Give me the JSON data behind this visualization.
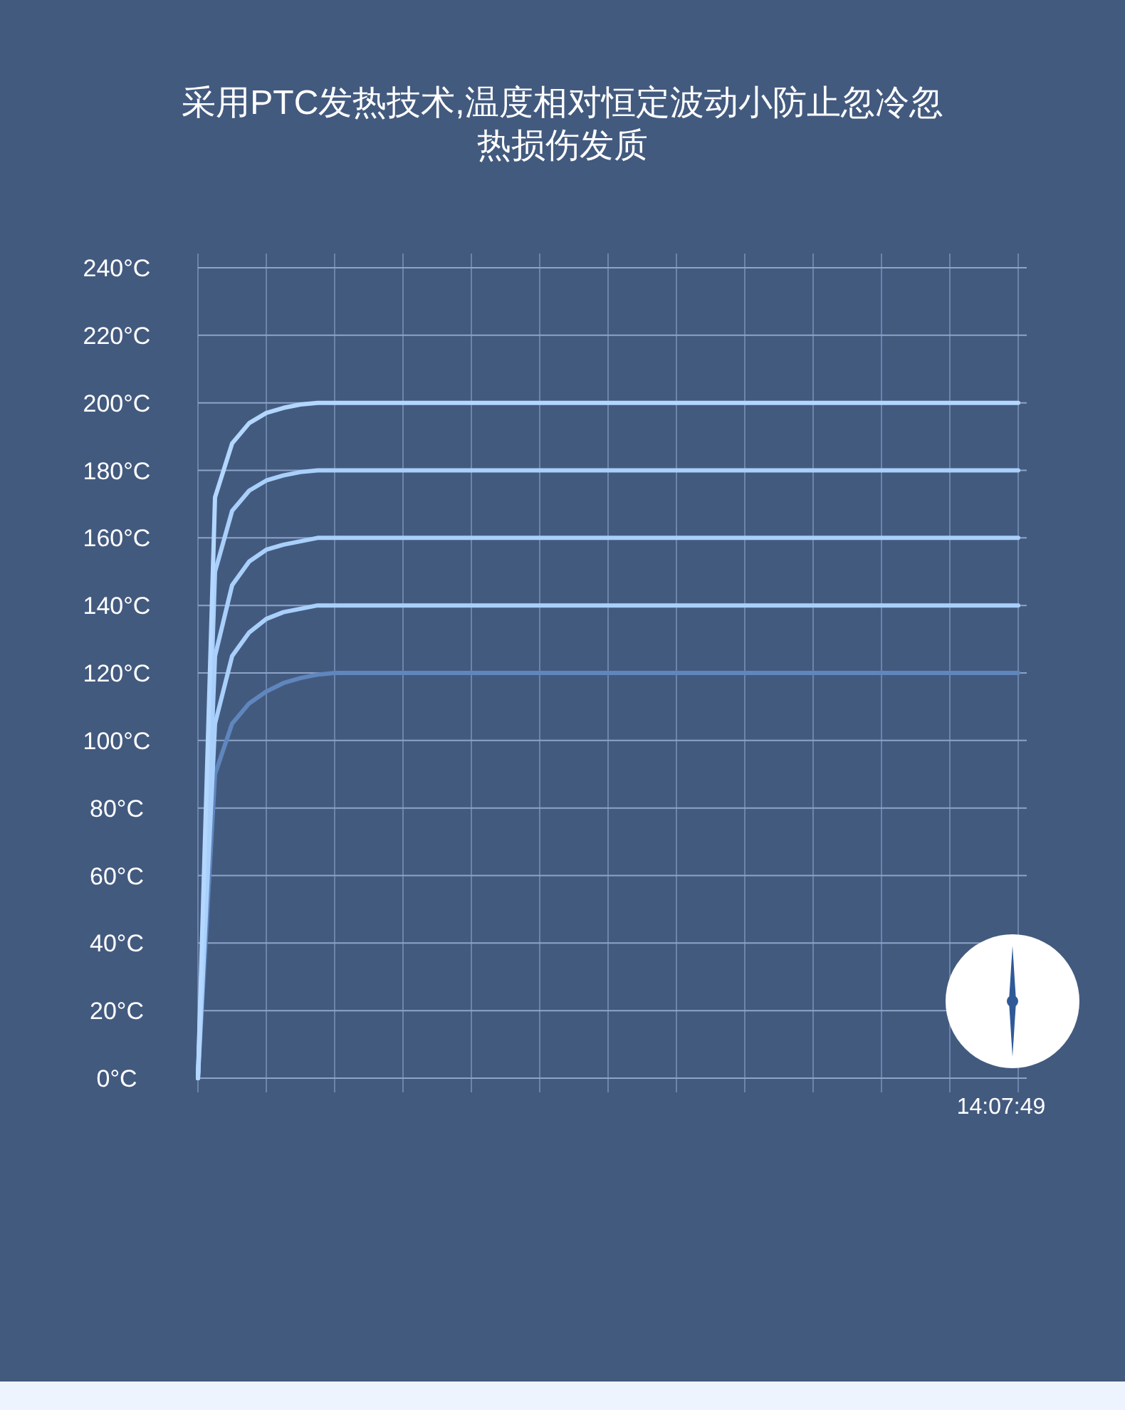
{
  "chart_data": {
    "type": "line",
    "title": "采用PTC发热技术,温度相对恒定波动小防止忽冷忽热损伤发质",
    "categories": [
      null,
      null,
      null,
      null,
      null,
      null,
      null,
      null,
      null,
      null,
      null,
      null,
      null,
      null,
      null,
      null,
      null,
      null,
      null,
      null,
      null,
      null,
      null,
      null,
      null,
      null,
      null,
      null,
      null,
      null,
      null,
      null,
      null,
      null,
      null,
      null,
      null,
      null,
      null,
      null,
      null,
      null,
      null,
      null,
      null,
      null,
      null,
      null,
      null
    ],
    "series": [
      {
        "color": "#5f86bd",
        "values": [
          0,
          90,
          105,
          111,
          114.5,
          117,
          118.5,
          119.5,
          120,
          120,
          120,
          120,
          120,
          120,
          120,
          120,
          120,
          120,
          120,
          120,
          120,
          120,
          120,
          120,
          120,
          120,
          120,
          120,
          120,
          120,
          120,
          120,
          120,
          120,
          120,
          120,
          120,
          120,
          120,
          120,
          120,
          120,
          120,
          120,
          120,
          120,
          120,
          120,
          120
        ]
      },
      {
        "color": "#a9d0fb",
        "values": [
          0,
          105,
          125,
          132,
          136,
          138,
          139,
          140,
          140,
          140,
          140,
          140,
          140,
          140,
          140,
          140,
          140,
          140,
          140,
          140,
          140,
          140,
          140,
          140,
          140,
          140,
          140,
          140,
          140,
          140,
          140,
          140,
          140,
          140,
          140,
          140,
          140,
          140,
          140,
          140,
          140,
          140,
          140,
          140,
          140,
          140,
          140,
          140,
          140
        ]
      },
      {
        "color": "#a9d0fb",
        "values": [
          0,
          125,
          146,
          153,
          156.5,
          158,
          159,
          160,
          160,
          160,
          160,
          160,
          160,
          160,
          160,
          160,
          160,
          160,
          160,
          160,
          160,
          160,
          160,
          160,
          160,
          160,
          160,
          160,
          160,
          160,
          160,
          160,
          160,
          160,
          160,
          160,
          160,
          160,
          160,
          160,
          160,
          160,
          160,
          160,
          160,
          160,
          160,
          160,
          160
        ]
      },
      {
        "color": "#a9d0fb",
        "values": [
          0,
          150,
          168,
          174,
          177,
          178.5,
          179.5,
          180,
          180,
          180,
          180,
          180,
          180,
          180,
          180,
          180,
          180,
          180,
          180,
          180,
          180,
          180,
          180,
          180,
          180,
          180,
          180,
          180,
          180,
          180,
          180,
          180,
          180,
          180,
          180,
          180,
          180,
          180,
          180,
          180,
          180,
          180,
          180,
          180,
          180,
          180,
          180,
          180,
          180
        ]
      },
      {
        "color": "#b3d7ff",
        "values": [
          0,
          172,
          188,
          194,
          197,
          198.5,
          199.5,
          200,
          200,
          200,
          200,
          200,
          200,
          200,
          200,
          200,
          200,
          200,
          200,
          200,
          200,
          200,
          200,
          200,
          200,
          200,
          200,
          200,
          200,
          200,
          200,
          200,
          200,
          200,
          200,
          200,
          200,
          200,
          200,
          200,
          200,
          200,
          200,
          200,
          200,
          200,
          200,
          200,
          200
        ]
      }
    ],
    "ylim": [
      0,
      240
    ],
    "yticks": [
      {
        "value": 0,
        "label": "0°C"
      },
      {
        "value": 20,
        "label": "20°C"
      },
      {
        "value": 40,
        "label": "40°C"
      },
      {
        "value": 60,
        "label": "60°C"
      },
      {
        "value": 80,
        "label": "80°C"
      },
      {
        "value": 100,
        "label": "100°C"
      },
      {
        "value": 120,
        "label": "120°C"
      },
      {
        "value": 140,
        "label": "140°C"
      },
      {
        "value": 160,
        "label": "160°C"
      },
      {
        "value": 180,
        "label": "180°C"
      },
      {
        "value": 200,
        "label": "200°C"
      },
      {
        "value": 220,
        "label": "220°C"
      },
      {
        "value": 240,
        "label": "240°C"
      }
    ],
    "tick_labels": "y",
    "grid": true,
    "marker": "none",
    "line_style": "solid",
    "annotations": [
      "14:07:49"
    ]
  }
}
